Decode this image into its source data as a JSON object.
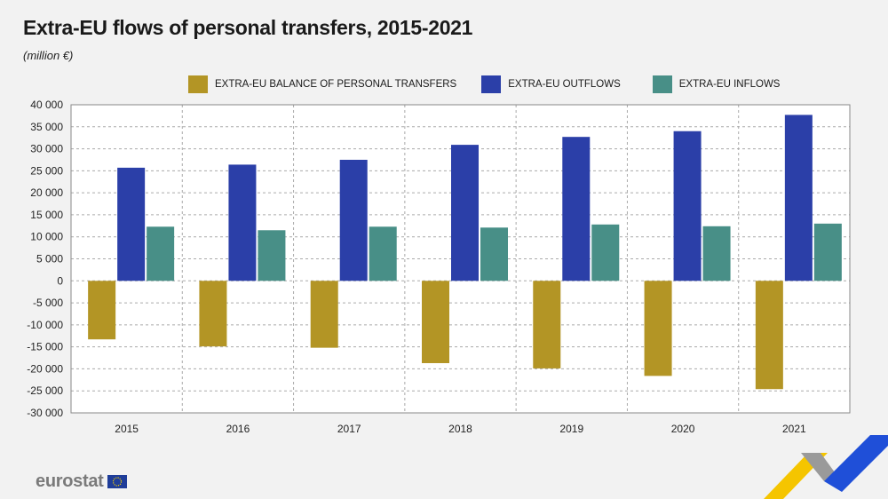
{
  "header": {
    "title": "Extra-EU flows of personal transfers, 2015-2021",
    "subtitle": "(million €)"
  },
  "footer": {
    "logo_text": "eurostat"
  },
  "colors": {
    "balance": "#b39525",
    "outflows": "#2b3fa8",
    "inflows": "#488f87",
    "grid": "#aaaaaa",
    "plot_bg": "#ffffff"
  },
  "chart_data": {
    "type": "bar",
    "title": "Extra-EU flows of personal transfers, 2015-2021",
    "subtitle": "(million €)",
    "categories": [
      "2015",
      "2016",
      "2017",
      "2018",
      "2019",
      "2020",
      "2021"
    ],
    "series": [
      {
        "name": "EXTRA-EU BALANCE OF PERSONAL TRANSFERS",
        "values": [
          -13300,
          -14900,
          -15200,
          -18700,
          -19900,
          -21600,
          -24600
        ]
      },
      {
        "name": "EXTRA-EU OUTFLOWS",
        "values": [
          25700,
          26400,
          27500,
          30900,
          32700,
          34000,
          37700
        ]
      },
      {
        "name": "EXTRA-EU INFLOWS",
        "values": [
          12300,
          11500,
          12300,
          12100,
          12800,
          12400,
          13000
        ]
      }
    ],
    "ylim": [
      -30000,
      40000
    ],
    "yticks": [
      -30000,
      -25000,
      -20000,
      -15000,
      -10000,
      -5000,
      0,
      5000,
      10000,
      15000,
      20000,
      25000,
      30000,
      35000,
      40000
    ],
    "ytick_labels": [
      "-30 000",
      "-25 000",
      "-20 000",
      "-15 000",
      "-10 000",
      "-5 000",
      "0",
      "5 000",
      "10 000",
      "15 000",
      "20 000",
      "25 000",
      "30 000",
      "35 000",
      "40 000"
    ],
    "grid": true,
    "legend_position": "top"
  }
}
